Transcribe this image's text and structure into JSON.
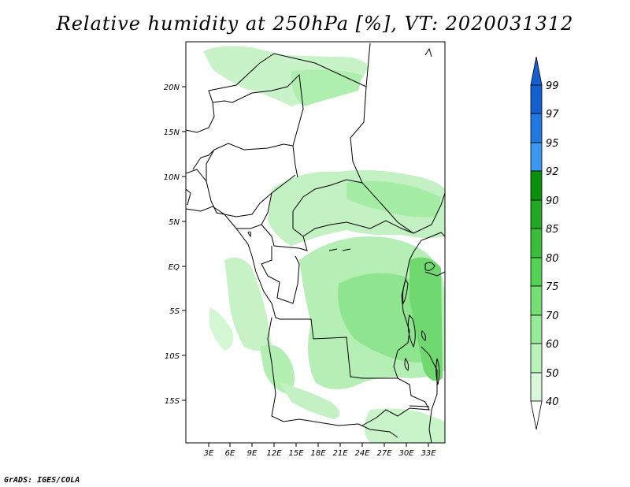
{
  "title": "Relative humidity at 250hPa [%], VT: 2020031312",
  "credit": "GrADS: IGES/COLA",
  "map": {
    "lat_labels": [
      "20N",
      "15N",
      "10N",
      "5N",
      "EQ",
      "5S",
      "10S",
      "15S"
    ],
    "lon_labels": [
      "3E",
      "6E",
      "9E",
      "12E",
      "15E",
      "18E",
      "21E",
      "24E",
      "27E",
      "30E",
      "33E"
    ]
  },
  "colorbar": {
    "labels": [
      "99",
      "97",
      "95",
      "92",
      "90",
      "85",
      "80",
      "75",
      "70",
      "60",
      "50",
      "40"
    ],
    "colors": [
      "#1560d0",
      "#2178e0",
      "#3c98ee",
      "#0b900b",
      "#22a822",
      "#3abe3a",
      "#54d254",
      "#74e074",
      "#97ea97",
      "#b9f2b9",
      "#d9f8d9",
      "#f0fdf0"
    ]
  }
}
